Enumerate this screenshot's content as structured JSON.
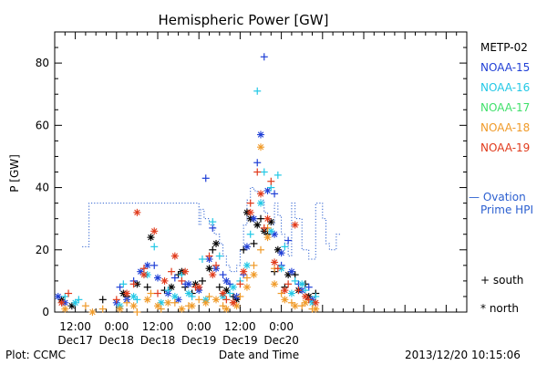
{
  "chart_data": {
    "type": "scatter",
    "title": "Hemispheric Power [GW]",
    "xlabel": "Date and Time",
    "ylabel": "P [GW]",
    "ylim": [
      0,
      90
    ],
    "yticks": [
      0,
      20,
      40,
      60,
      80
    ],
    "xlim": [
      -18,
      102
    ],
    "xtick_units": "hours since 2013-12-18 00:00",
    "x_major_ticks": [
      {
        "x": -12,
        "time": "12:00",
        "date": "Dec17"
      },
      {
        "x": 0,
        "time": "0:00",
        "date": "Dec18"
      },
      {
        "x": 12,
        "time": "12:00",
        "date": "Dec18"
      },
      {
        "x": 24,
        "time": "0:00",
        "date": "Dec19"
      },
      {
        "x": 36,
        "time": "12:00",
        "date": "Dec19"
      },
      {
        "x": 48,
        "time": "0:00",
        "date": "Dec20"
      }
    ],
    "legend": {
      "placement": "right",
      "satellites": [
        {
          "name": "METP-02",
          "color": "#000000"
        },
        {
          "name": "NOAA-15",
          "color": "#1f3fd6"
        },
        {
          "name": "NOAA-16",
          "color": "#22c8e6"
        },
        {
          "name": "NOAA-17",
          "color": "#3fe06a"
        },
        {
          "name": "NOAA-18",
          "color": "#f09a28"
        },
        {
          "name": "NOAA-19",
          "color": "#e0391a"
        }
      ],
      "ovation_label_1": "— Ovation",
      "ovation_label_2": "Prime HPI",
      "ovation_color": "#2b5fd0",
      "south_label": "+ south",
      "north_label": "* north"
    },
    "ovation_prime": [
      {
        "x": -10,
        "y": 21
      },
      {
        "x": -8,
        "y": 35
      },
      {
        "x": -4.5,
        "y": 35
      },
      {
        "x": 24,
        "y": 28
      },
      {
        "x": 24.5,
        "y": 33
      },
      {
        "x": 25.5,
        "y": 30
      },
      {
        "x": 27,
        "y": 28
      },
      {
        "x": 28.5,
        "y": 25
      },
      {
        "x": 30,
        "y": 22
      },
      {
        "x": 31,
        "y": 18
      },
      {
        "x": 32,
        "y": 15
      },
      {
        "x": 33,
        "y": 13
      },
      {
        "x": 35,
        "y": 15
      },
      {
        "x": 36,
        "y": 20
      },
      {
        "x": 37,
        "y": 28
      },
      {
        "x": 38,
        "y": 36
      },
      {
        "x": 39,
        "y": 40
      },
      {
        "x": 40,
        "y": 39
      },
      {
        "x": 41,
        "y": 38
      },
      {
        "x": 42,
        "y": 36
      },
      {
        "x": 43,
        "y": 32
      },
      {
        "x": 44,
        "y": 30
      },
      {
        "x": 45,
        "y": 28
      },
      {
        "x": 46,
        "y": 35
      },
      {
        "x": 47,
        "y": 31
      },
      {
        "x": 48,
        "y": 25
      },
      {
        "x": 49,
        "y": 22
      },
      {
        "x": 50,
        "y": 18
      },
      {
        "x": 51,
        "y": 35
      },
      {
        "x": 52,
        "y": 30
      },
      {
        "x": 54,
        "y": 20
      },
      {
        "x": 56,
        "y": 17
      },
      {
        "x": 58,
        "y": 35
      },
      {
        "x": 60,
        "y": 30
      },
      {
        "x": 61,
        "y": 22
      },
      {
        "x": 62,
        "y": 20
      },
      {
        "x": 64,
        "y": 25
      }
    ],
    "series": [
      {
        "name": "METP-02",
        "color": "#000000",
        "south": [
          [
            -4,
            4
          ],
          [
            3,
            5
          ],
          [
            9,
            8
          ],
          [
            14,
            7
          ],
          [
            18,
            12
          ],
          [
            20,
            8
          ],
          [
            22,
            6
          ],
          [
            25,
            10
          ],
          [
            28,
            20
          ],
          [
            30,
            8
          ],
          [
            34,
            5
          ],
          [
            37,
            20
          ],
          [
            40,
            22
          ],
          [
            42,
            30
          ],
          [
            44,
            25
          ],
          [
            46,
            13
          ],
          [
            49,
            8
          ],
          [
            52,
            12
          ],
          [
            55,
            9
          ],
          [
            58,
            6
          ]
        ],
        "north": [
          [
            -16,
            4
          ],
          [
            -13,
            2
          ],
          [
            2,
            6
          ],
          [
            6,
            9
          ],
          [
            10,
            24
          ],
          [
            16,
            8
          ],
          [
            19,
            13
          ],
          [
            23,
            9
          ],
          [
            27,
            14
          ],
          [
            29,
            22
          ],
          [
            32,
            7
          ],
          [
            35,
            4
          ],
          [
            38,
            32
          ],
          [
            39,
            30
          ],
          [
            41,
            28
          ],
          [
            43,
            26
          ],
          [
            45,
            29
          ],
          [
            47,
            20
          ],
          [
            50,
            12
          ],
          [
            53,
            7
          ],
          [
            56,
            5
          ]
        ]
      },
      {
        "name": "NOAA-15",
        "color": "#1f3fd6",
        "south": [
          [
            1,
            8
          ],
          [
            5,
            10
          ],
          [
            11,
            15
          ],
          [
            17,
            11
          ],
          [
            20,
            9
          ],
          [
            26,
            43
          ],
          [
            28,
            27
          ],
          [
            31,
            12
          ],
          [
            33,
            9
          ],
          [
            37,
            12
          ],
          [
            41,
            48
          ],
          [
            43,
            82
          ],
          [
            46,
            38
          ],
          [
            48,
            15
          ],
          [
            50,
            23
          ],
          [
            53,
            9
          ],
          [
            56,
            8
          ]
        ],
        "north": [
          [
            -17,
            5
          ],
          [
            -15,
            3
          ],
          [
            0,
            3
          ],
          [
            3,
            4
          ],
          [
            7,
            13
          ],
          [
            9,
            15
          ],
          [
            12,
            11
          ],
          [
            15,
            6
          ],
          [
            18,
            4
          ],
          [
            21,
            9
          ],
          [
            24,
            7
          ],
          [
            27,
            17
          ],
          [
            29,
            14
          ],
          [
            32,
            10
          ],
          [
            35,
            5
          ],
          [
            38,
            21
          ],
          [
            40,
            30
          ],
          [
            42,
            57
          ],
          [
            44,
            39
          ],
          [
            46,
            25
          ],
          [
            48,
            19
          ],
          [
            51,
            13
          ],
          [
            54,
            7
          ],
          [
            57,
            4
          ]
        ]
      },
      {
        "name": "NOAA-16",
        "color": "#22c8e6",
        "south": [
          [
            -15,
            5
          ],
          [
            -11,
            4
          ],
          [
            2,
            9
          ],
          [
            6,
            4
          ],
          [
            11,
            21
          ],
          [
            15,
            7
          ],
          [
            19,
            12
          ],
          [
            22,
            5
          ],
          [
            25,
            17
          ],
          [
            28,
            29
          ],
          [
            30,
            18
          ],
          [
            33,
            6
          ],
          [
            36,
            10
          ],
          [
            39,
            25
          ],
          [
            41,
            71
          ],
          [
            43,
            45
          ],
          [
            45,
            40
          ],
          [
            47,
            44
          ],
          [
            49,
            21
          ],
          [
            52,
            10
          ],
          [
            55,
            7
          ],
          [
            58,
            5
          ]
        ],
        "north": [
          [
            -12,
            3
          ],
          [
            1,
            2
          ],
          [
            5,
            5
          ],
          [
            9,
            12
          ],
          [
            13,
            3
          ],
          [
            17,
            5
          ],
          [
            21,
            6
          ],
          [
            26,
            4
          ],
          [
            31,
            5
          ],
          [
            34,
            8
          ],
          [
            38,
            15
          ],
          [
            42,
            35
          ],
          [
            45,
            26
          ],
          [
            48,
            14
          ],
          [
            51,
            6
          ],
          [
            54,
            9
          ],
          [
            57,
            3
          ]
        ]
      },
      {
        "name": "NOAA-17",
        "color": "#3fe06a",
        "south": [],
        "north": []
      },
      {
        "name": "NOAA-18",
        "color": "#f09a28",
        "south": [
          [
            -9,
            2
          ],
          [
            -4,
            1
          ],
          [
            3,
            3
          ],
          [
            6,
            0
          ],
          [
            10,
            6
          ],
          [
            13,
            1
          ],
          [
            17,
            3
          ],
          [
            21,
            2
          ],
          [
            24,
            4
          ],
          [
            27,
            5
          ],
          [
            31,
            2
          ],
          [
            34,
            3
          ],
          [
            36,
            5
          ],
          [
            38,
            11
          ],
          [
            40,
            15
          ],
          [
            42,
            20
          ],
          [
            44,
            27
          ],
          [
            46,
            14
          ],
          [
            48,
            6
          ],
          [
            51,
            3
          ],
          [
            54,
            2
          ],
          [
            57,
            1
          ]
        ],
        "north": [
          [
            -15,
            1
          ],
          [
            -7,
            0
          ],
          [
            1,
            1
          ],
          [
            5,
            2
          ],
          [
            9,
            4
          ],
          [
            12,
            2
          ],
          [
            15,
            3
          ],
          [
            19,
            1
          ],
          [
            22,
            2
          ],
          [
            26,
            3
          ],
          [
            29,
            4
          ],
          [
            32,
            1
          ],
          [
            35,
            2
          ],
          [
            38,
            8
          ],
          [
            40,
            12
          ],
          [
            42,
            53
          ],
          [
            44,
            24
          ],
          [
            46,
            9
          ],
          [
            49,
            4
          ],
          [
            52,
            2
          ],
          [
            55,
            3
          ],
          [
            58,
            1
          ]
        ]
      },
      {
        "name": "NOAA-19",
        "color": "#e0391a",
        "south": [
          [
            -14,
            6
          ],
          [
            0,
            4
          ],
          [
            5,
            9
          ],
          [
            8,
            14
          ],
          [
            12,
            6
          ],
          [
            16,
            13
          ],
          [
            19,
            10
          ],
          [
            23,
            8
          ],
          [
            27,
            18
          ],
          [
            29,
            15
          ],
          [
            32,
            4
          ],
          [
            36,
            9
          ],
          [
            39,
            35
          ],
          [
            41,
            45
          ],
          [
            43,
            27
          ],
          [
            45,
            42
          ],
          [
            47,
            14
          ],
          [
            50,
            9
          ],
          [
            53,
            7
          ],
          [
            56,
            4
          ]
        ],
        "north": [
          [
            -16,
            3
          ],
          [
            3,
            6
          ],
          [
            6,
            32
          ],
          [
            8,
            12
          ],
          [
            11,
            26
          ],
          [
            14,
            10
          ],
          [
            17,
            18
          ],
          [
            20,
            13
          ],
          [
            24,
            8
          ],
          [
            28,
            12
          ],
          [
            31,
            6
          ],
          [
            34,
            3
          ],
          [
            37,
            13
          ],
          [
            39,
            32
          ],
          [
            42,
            38
          ],
          [
            44,
            30
          ],
          [
            46,
            16
          ],
          [
            49,
            7
          ],
          [
            52,
            28
          ],
          [
            55,
            5
          ],
          [
            58,
            3
          ]
        ]
      }
    ]
  },
  "footer": {
    "plot_credit": "Plot: CCMC",
    "timestamp": "2013/12/20 10:15:06"
  }
}
